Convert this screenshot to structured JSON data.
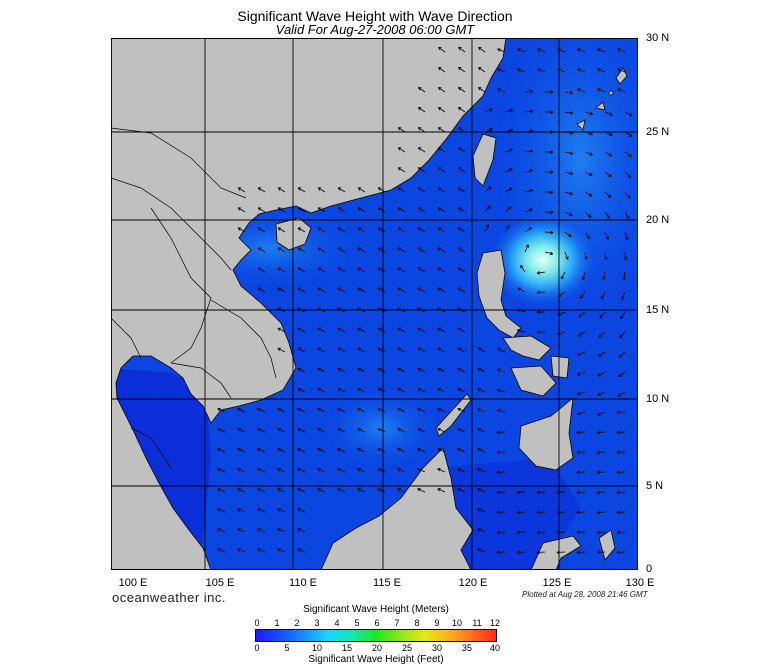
{
  "title": "Significant Wave Height with Wave Direction",
  "subtitle": "Valid For Aug-27-2008 06:00 GMT",
  "lat_labels": [
    "30 N",
    "25 N",
    "20 N",
    "15 N",
    "10 N",
    "5 N",
    "0"
  ],
  "lon_labels": [
    "100 E",
    "105 E",
    "110 E",
    "115 E",
    "120 E",
    "125 E",
    "130 E"
  ],
  "brand": "oceanweather inc.",
  "plotted_note": "Plotted at Aug 28, 2008 21:46 GMT",
  "colorbar": {
    "title_meters": "Significant Wave Height (Meters)",
    "title_feet": "Significant Wave Height (Feet)",
    "meters_ticks": [
      "0",
      "1",
      "2",
      "3",
      "4",
      "5",
      "6",
      "7",
      "8",
      "9",
      "10",
      "11",
      "12"
    ],
    "feet_ticks": [
      "0",
      "5",
      "10",
      "15",
      "20",
      "25",
      "30",
      "35",
      "40"
    ]
  },
  "colors": {
    "land": "#c0c0c0",
    "ocean_deep": "#0a2ed8",
    "ocean_mid": "#0b4ce6",
    "ocean_high": "#1f7ff0",
    "swell_peak": "#d8fff4",
    "grid": "#000000",
    "arrow": "#000000"
  }
}
